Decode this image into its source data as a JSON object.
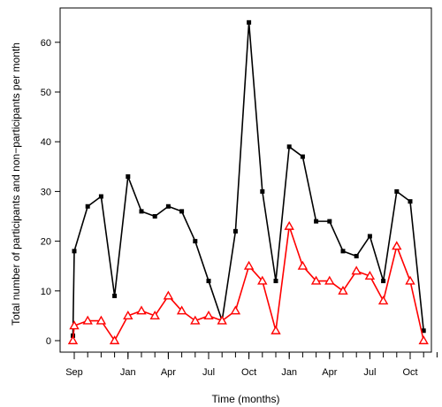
{
  "chart_data": {
    "type": "line",
    "title": "",
    "xlabel": "Time (months)",
    "ylabel": "Total number of participants and non−participants per month",
    "ylim": [
      -2,
      67
    ],
    "yticks": [
      0,
      10,
      20,
      30,
      40,
      50,
      60
    ],
    "xticks": [
      {
        "label": "Sep",
        "x": 0
      },
      {
        "label": "Jan",
        "x": 4
      },
      {
        "label": "Apr",
        "x": 7
      },
      {
        "label": "Jul",
        "x": 10
      },
      {
        "label": "Oct",
        "x": 13
      },
      {
        "label": "Jan",
        "x": 16
      },
      {
        "label": "Apr",
        "x": 19
      },
      {
        "label": "Jul",
        "x": 22
      },
      {
        "label": "Oct",
        "x": 25
      }
    ],
    "x": [
      -0.1,
      0,
      1,
      2,
      3,
      4,
      5,
      6,
      7,
      8,
      9,
      10,
      11,
      12,
      13,
      14,
      15,
      16,
      17,
      18,
      19,
      20,
      21,
      22,
      23,
      24,
      25,
      26,
      27
    ],
    "grid": false,
    "legend": "none",
    "series": [
      {
        "color": "#000000",
        "marker": "square",
        "values": [
          1,
          18,
          27,
          29,
          9,
          33,
          26,
          25,
          27,
          26,
          20,
          12,
          4,
          22,
          64,
          30,
          12,
          39,
          37,
          24,
          24,
          18,
          17,
          21,
          12,
          30,
          28,
          2,
          null
        ]
      },
      {
        "color": "#ff0000",
        "marker": "triangle",
        "values": [
          0,
          3,
          4,
          4,
          0,
          5,
          6,
          5,
          9,
          6,
          4,
          5,
          4,
          6,
          15,
          12,
          2,
          23,
          15,
          12,
          12,
          10,
          14,
          13,
          8,
          19,
          12,
          0,
          null
        ]
      }
    ]
  }
}
